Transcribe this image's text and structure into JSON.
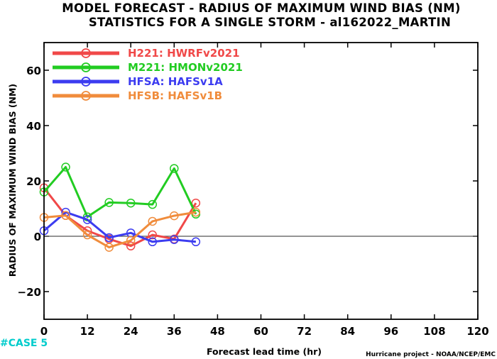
{
  "chart_data": {
    "type": "line",
    "title": "MODEL FORECAST - RADIUS OF MAXIMUM WIND BIAS (NM)",
    "subtitle": "STATISTICS FOR A SINGLE STORM - al162022_MARTIN",
    "xlabel": "Forecast lead time (hr)",
    "ylabel": "RADIUS OF MAXIMUM WIND BIAS (NM)",
    "xlim": [
      0,
      120
    ],
    "ylim": [
      -30,
      70
    ],
    "xticks": [
      0,
      12,
      24,
      36,
      48,
      60,
      72,
      84,
      96,
      108,
      120
    ],
    "yticks": [
      -20,
      0,
      20,
      40,
      60
    ],
    "reference_line": 0,
    "grid": false,
    "legend_position": "top-left",
    "series": [
      {
        "name": "H221: HWRFv2021",
        "color": "#f04848",
        "x": [
          0,
          6,
          12,
          18,
          24,
          30,
          36,
          42
        ],
        "y": [
          17.5,
          7.5,
          2,
          -1,
          -3.5,
          0.5,
          -1,
          12
        ]
      },
      {
        "name": "M221: HMONv2021",
        "color": "#22cc22",
        "x": [
          0,
          6,
          12,
          18,
          24,
          30,
          36,
          42
        ],
        "y": [
          16,
          25,
          7,
          12.2,
          12,
          11.5,
          24.5,
          8
        ]
      },
      {
        "name": "HFSA: HAFSv1A",
        "color": "#3c3cf0",
        "x": [
          0,
          6,
          12,
          18,
          24,
          30,
          36,
          42
        ],
        "y": [
          2,
          8.7,
          6,
          -0.5,
          1.2,
          -2,
          -1.2,
          -2
        ]
      },
      {
        "name": "HFSB: HAFSv1B",
        "color": "#f08c3c",
        "x": [
          0,
          6,
          12,
          18,
          24,
          30,
          36,
          42
        ],
        "y": [
          6.8,
          7.5,
          0.5,
          -4,
          -1.5,
          5.4,
          7.4,
          8.7
        ]
      }
    ]
  },
  "footer": {
    "case_label": "#CASE 5",
    "case_color": "#00cccc",
    "credit": "Hurricane project - NOAA/NCEP/EMC"
  }
}
